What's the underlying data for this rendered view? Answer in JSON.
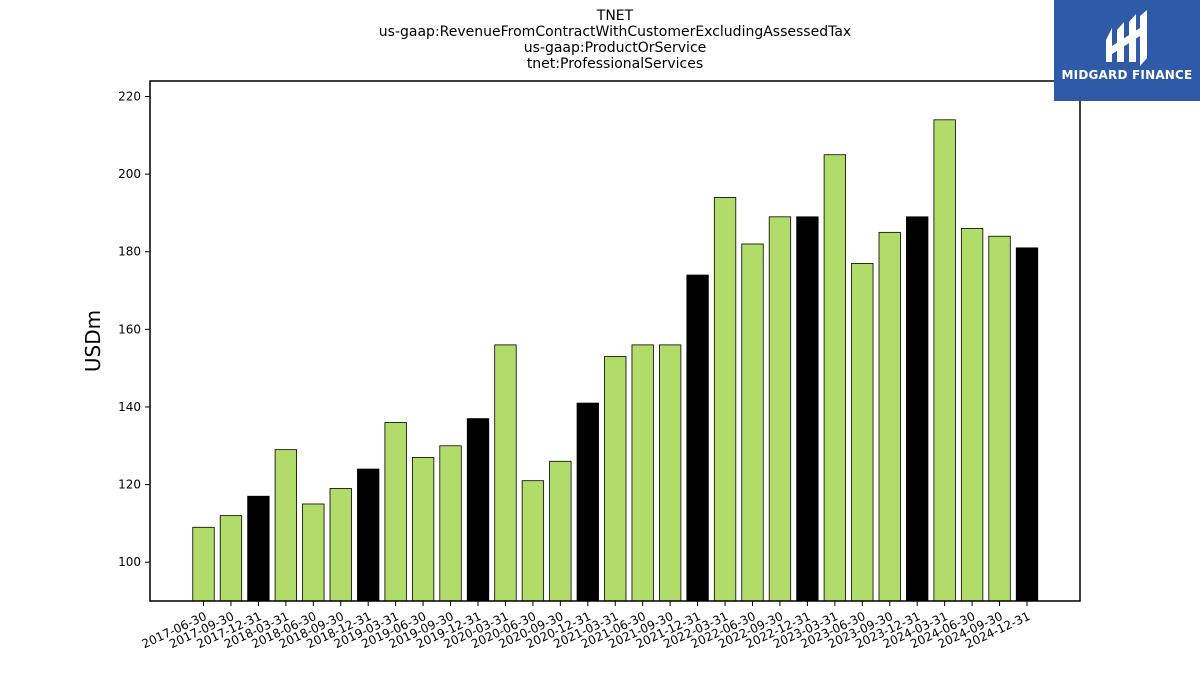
{
  "chart_data": {
    "type": "bar",
    "title_lines": [
      "TNET",
      "us-gaap:RevenueFromContractWithCustomerExcludingAssessedTax",
      "us-gaap:ProductOrService",
      "tnet:ProfessionalServices"
    ],
    "ylabel": "USDm",
    "xlabel": "",
    "ylim": [
      90,
      224
    ],
    "yticks": [
      100,
      120,
      140,
      160,
      180,
      200,
      220
    ],
    "categories": [
      "2017-06-30",
      "2017-09-30",
      "2017-12-31",
      "2018-03-31",
      "2018-06-30",
      "2018-09-30",
      "2018-12-31",
      "2019-03-31",
      "2019-06-30",
      "2019-09-30",
      "2019-12-31",
      "2020-03-31",
      "2020-06-30",
      "2020-09-30",
      "2020-12-31",
      "2021-03-31",
      "2021-06-30",
      "2021-09-30",
      "2021-12-31",
      "2022-03-31",
      "2022-06-30",
      "2022-09-30",
      "2022-12-31",
      "2023-03-31",
      "2023-06-30",
      "2023-09-30",
      "2023-12-31",
      "2024-03-31",
      "2024-06-30",
      "2024-09-30",
      "2024-12-31"
    ],
    "values": [
      109,
      112,
      117,
      129,
      115,
      119,
      124,
      136,
      127,
      130,
      137,
      156,
      121,
      126,
      141,
      153,
      156,
      156,
      174,
      194,
      182,
      189,
      189,
      205,
      177,
      185,
      189,
      214,
      186,
      184,
      181
    ],
    "colors": {
      "quarter": "#b2dc6a",
      "year_end": "#000000",
      "edge": "#000000"
    },
    "grid": false
  },
  "logo": {
    "text": "MIDGARD FINANCE",
    "color": "#2f5aa8"
  }
}
